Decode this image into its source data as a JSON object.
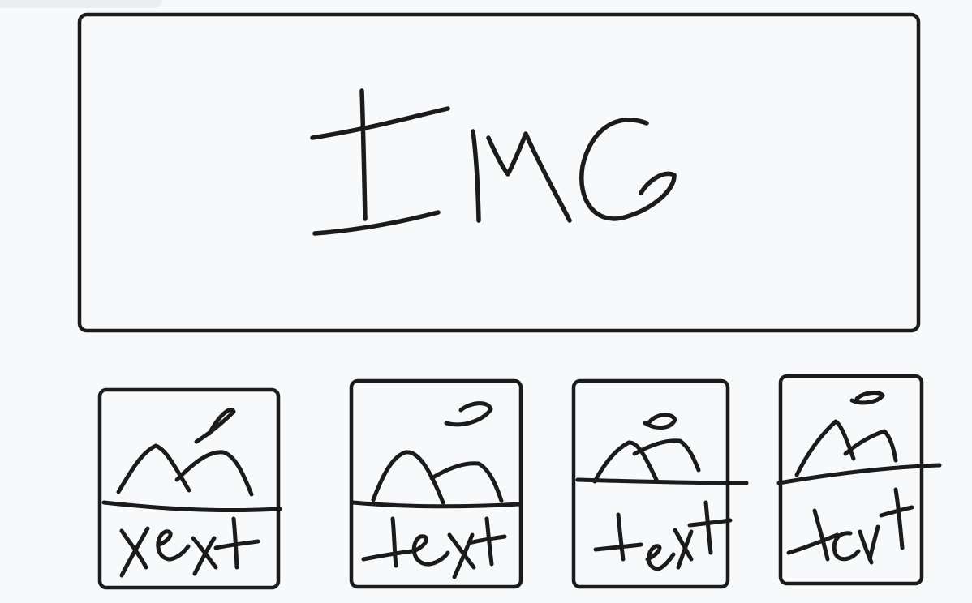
{
  "hero": {
    "label": "IMG"
  },
  "cards": [
    {
      "icon": "image-placeholder-icon",
      "label": "text"
    },
    {
      "icon": "image-placeholder-icon",
      "label": "text"
    },
    {
      "icon": "image-placeholder-icon",
      "label": "text"
    },
    {
      "icon": "image-placeholder-icon",
      "label": "text"
    }
  ],
  "colors": {
    "background": "#f8f9fb",
    "ink": "#1b1b1b"
  }
}
